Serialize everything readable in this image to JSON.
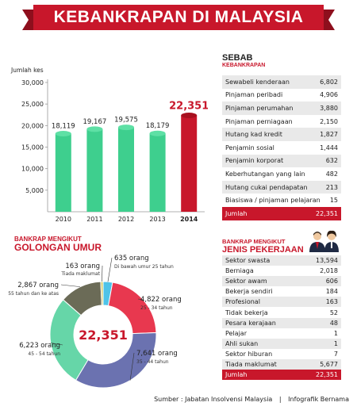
{
  "title": "KEBANKRAPAN DI MALAYSIA",
  "chart_data": [
    {
      "type": "bar",
      "ylabel": "Jumlah kes",
      "ylim": [
        0,
        30000
      ],
      "yticks": [
        "30,000",
        "25,000",
        "20,000",
        "15,000",
        "10,000",
        "5,000"
      ],
      "categories": [
        "2010",
        "2011",
        "2012",
        "2013",
        "2014"
      ],
      "values": [
        18119,
        19167,
        19575,
        18179,
        22351
      ],
      "labels": [
        "18,119",
        "19,167",
        "19,575",
        "18,179",
        "22,351"
      ],
      "colors": [
        "#3ecf8e",
        "#3ecf8e",
        "#3ecf8e",
        "#3ecf8e",
        "#c8172b"
      ]
    },
    {
      "type": "pie",
      "title": "BANKRAP MENGIKUT GOLONGAN UMUR",
      "title_line1": "BANKRAP MENGIKUT",
      "title_line2": "GOLONGAN UMUR",
      "center_label": "22,351",
      "slices": [
        {
          "value": 635,
          "label": "635 orang",
          "sub": "Di bawah umur 25 tahun",
          "color": "#4fc3e8"
        },
        {
          "value": 4822,
          "label": "4,822 orang",
          "sub": "25 - 34 tahun",
          "color": "#e8384f"
        },
        {
          "value": 7641,
          "label": "7,641 orang",
          "sub": "35 - 44 tahun",
          "color": "#6b72b0"
        },
        {
          "value": 6223,
          "label": "6,223 orang",
          "sub": "45 - 54 tahun",
          "color": "#66d6a8"
        },
        {
          "value": 2867,
          "label": "2,867 orang",
          "sub": "55 tahun dan ke atas",
          "color": "#6b6b57"
        },
        {
          "value": 163,
          "label": "163 orang",
          "sub": "Tiada maklumat",
          "color": "#d9cc6a"
        }
      ]
    },
    {
      "type": "table",
      "title_line1": "SEBAB",
      "title_line2": "KEBANKRAPAN",
      "rows": [
        {
          "label": "Sewabeli kenderaan",
          "value": "6,802"
        },
        {
          "label": "Pinjaman peribadi",
          "value": "4,906"
        },
        {
          "label": "Pinjaman perumahan",
          "value": "3,880"
        },
        {
          "label": "Pinjaman perniagaan",
          "value": "2,150"
        },
        {
          "label": "Hutang kad kredit",
          "value": "1,827"
        },
        {
          "label": "Penjamin sosial",
          "value": "1,444"
        },
        {
          "label": "Penjamin korporat",
          "value": "632"
        },
        {
          "label": "Keberhutangan yang lain",
          "value": "482"
        },
        {
          "label": "Hutang cukai pendapatan",
          "value": "213"
        },
        {
          "label": "Biasiswa / pinjaman pelajaran",
          "value": "15"
        }
      ],
      "total": {
        "label": "Jumlah",
        "value": "22,351"
      }
    },
    {
      "type": "table",
      "title_line1": "BANKRAP MENGIKUT",
      "title_line2": "JENIS PEKERJAAN",
      "rows": [
        {
          "label": "Sektor swasta",
          "value": "13,594"
        },
        {
          "label": "Berniaga",
          "value": "2,018"
        },
        {
          "label": "Sektor awam",
          "value": "606"
        },
        {
          "label": "Bekerja sendiri",
          "value": "184"
        },
        {
          "label": "Profesional",
          "value": "163"
        },
        {
          "label": "Tidak bekerja",
          "value": "52"
        },
        {
          "label": "Pesara kerajaan",
          "value": "48"
        },
        {
          "label": "Pelajar",
          "value": "1"
        },
        {
          "label": "Ahli sukan",
          "value": "1"
        },
        {
          "label": "Sektor hiburan",
          "value": "7"
        },
        {
          "label": "Tiada maklumat",
          "value": "5,677"
        }
      ],
      "total": {
        "label": "Jumlah",
        "value": "22,351"
      }
    }
  ],
  "footer": {
    "source": "Sumber : Jabatan Insolvensi Malaysia",
    "separator": "|",
    "credit": "Infografik Bernama"
  }
}
